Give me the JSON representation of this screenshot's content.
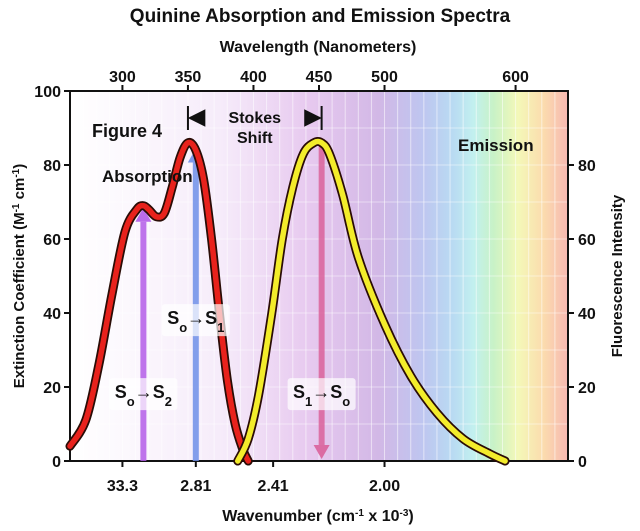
{
  "chart_data": {
    "type": "line",
    "title": "Quinine Absorption and Emission Spectra",
    "figure_label": "Figure 4",
    "top_axis": {
      "label": "Wavelength (Nanometers)",
      "ticks": [
        300,
        350,
        400,
        450,
        500,
        600
      ],
      "units": "nm"
    },
    "bottom_axis": {
      "label_main": "Wavenumber (cm",
      "label_sup": "-1",
      "label_tail": " x 10",
      "label_sup2": "-3",
      "label_close": ")",
      "ticks": [
        {
          "text": "33.3",
          "nm": 300
        },
        {
          "text": "2.81",
          "nm": 356
        },
        {
          "text": "2.41",
          "nm": 415
        },
        {
          "text": "2.00",
          "nm": 500
        }
      ]
    },
    "left_axis": {
      "label_main": "Extinction Coefficient (M",
      "label_sup1": "-1",
      "label_mid": " cm",
      "label_sup2": "-1",
      "label_close": ")",
      "ticks": [
        0,
        20,
        40,
        60,
        80,
        100
      ],
      "range": [
        0,
        100
      ]
    },
    "right_axis": {
      "label": "Fluorescence Intensity",
      "ticks": [
        0,
        20,
        40,
        60,
        80
      ],
      "range": [
        0,
        100
      ]
    },
    "x_range_nm": [
      260,
      640
    ],
    "series": [
      {
        "name": "Absorption",
        "color": "#e8221c",
        "points": [
          [
            260,
            4
          ],
          [
            272,
            11
          ],
          [
            282,
            26
          ],
          [
            292,
            45
          ],
          [
            302,
            62
          ],
          [
            311,
            68
          ],
          [
            316,
            69
          ],
          [
            320,
            68
          ],
          [
            326,
            66
          ],
          [
            332,
            67
          ],
          [
            338,
            74
          ],
          [
            344,
            82
          ],
          [
            350,
            86
          ],
          [
            356,
            84
          ],
          [
            362,
            76
          ],
          [
            368,
            60
          ],
          [
            374,
            40
          ],
          [
            380,
            22
          ],
          [
            386,
            10
          ],
          [
            392,
            3
          ],
          [
            396,
            0
          ]
        ]
      },
      {
        "name": "Emission",
        "color": "#f3ec2b",
        "points": [
          [
            388,
            0
          ],
          [
            396,
            6
          ],
          [
            404,
            18
          ],
          [
            414,
            40
          ],
          [
            422,
            60
          ],
          [
            430,
            74
          ],
          [
            438,
            83
          ],
          [
            446,
            86
          ],
          [
            452,
            86
          ],
          [
            458,
            83
          ],
          [
            468,
            72
          ],
          [
            480,
            55
          ],
          [
            500,
            37
          ],
          [
            520,
            23
          ],
          [
            540,
            13
          ],
          [
            560,
            6
          ],
          [
            580,
            2
          ],
          [
            592,
            0
          ]
        ]
      }
    ],
    "annotations": {
      "stokes_line1": "Stokes",
      "stokes_line2": "Shift",
      "stokes_from_nm": 350,
      "stokes_to_nm": 452,
      "transitions": [
        {
          "base": "S",
          "sub1": "o",
          "arrow": "→",
          "target": "S",
          "sub2": "2",
          "nm": 316,
          "from": 0,
          "to": 69,
          "label_y": 17,
          "color": "#b35de8",
          "direction": "up"
        },
        {
          "base": "S",
          "sub1": "o",
          "arrow": "→",
          "target": "S",
          "sub2": "1",
          "nm": 356,
          "from": 0,
          "to": 85,
          "label_y": 37,
          "color": "#6f8fe8",
          "direction": "up"
        },
        {
          "base": "S",
          "sub1": "1",
          "arrow": "→",
          "target": "S",
          "sub2": "o",
          "nm": 452,
          "from": 85,
          "to": 0,
          "label_y": 17,
          "color": "#d9609a",
          "direction": "down"
        }
      ]
    },
    "grid": true
  }
}
